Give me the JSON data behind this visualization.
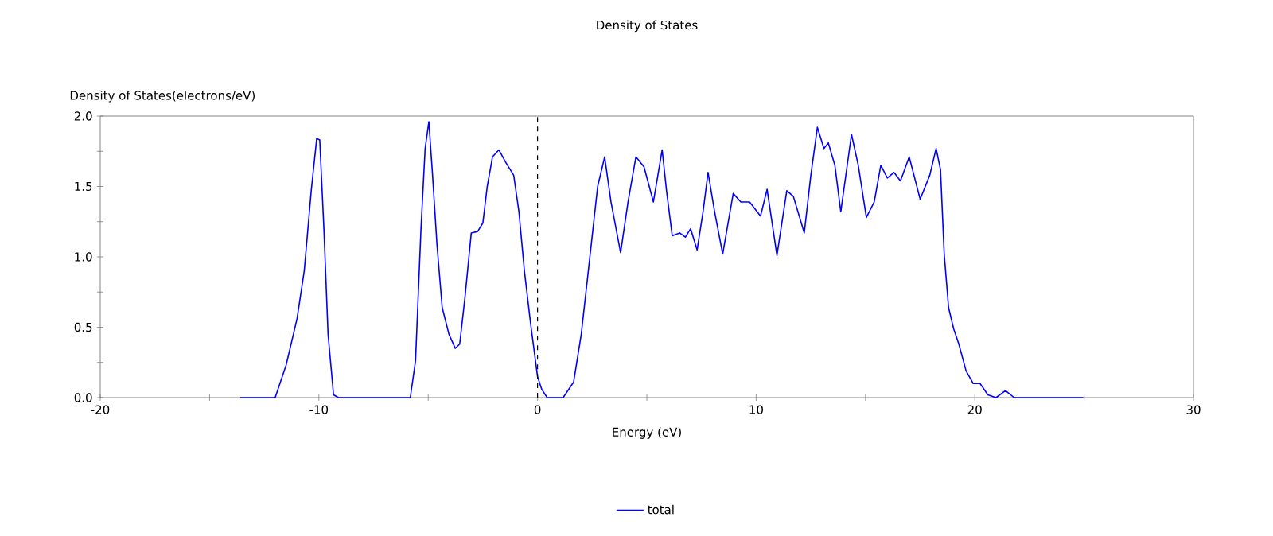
{
  "chart_data": {
    "type": "line",
    "title": "Density of States",
    "xlabel": "Energy (eV)",
    "ylabel": "Density of States(electrons/eV)",
    "xlim": [
      -20,
      30
    ],
    "ylim": [
      0,
      2.0
    ],
    "xticks": [
      -20,
      {
        "value": -15,
        "label": null
      },
      -10,
      {
        "value": -5,
        "label": null
      },
      0,
      {
        "value": 5,
        "label": null
      },
      10,
      {
        "value": 15,
        "label": null
      },
      20,
      {
        "value": 25,
        "label": null
      },
      30
    ],
    "yticks": [
      {
        "value": 0,
        "label": "0.0"
      },
      {
        "value": 0.25,
        "label": null
      },
      {
        "value": 0.5,
        "label": "0.5"
      },
      {
        "value": 0.75,
        "label": null
      },
      {
        "value": 1.0,
        "label": "1.0"
      },
      {
        "value": 1.25,
        "label": null
      },
      {
        "value": 1.5,
        "label": "1.5"
      },
      {
        "value": 1.75,
        "label": null
      },
      {
        "value": 2.0,
        "label": "2.0"
      }
    ],
    "grid": false,
    "legend": "bottom",
    "marker": "none",
    "line_style": "solid",
    "ref_lines": [
      {
        "axis": "x",
        "value": 0,
        "color": "#000000",
        "line_style": "dashed"
      }
    ],
    "series": [
      {
        "name": "total",
        "color": "#0000ff",
        "x": [
          -13.6,
          -12.0,
          -11.5,
          -11.0,
          -10.67,
          -10.35,
          -10.1,
          -9.96,
          -9.77,
          -9.58,
          -9.33,
          -9.1,
          -5.82,
          -5.58,
          -5.33,
          -5.14,
          -4.97,
          -4.8,
          -4.6,
          -4.36,
          -4.05,
          -3.76,
          -3.56,
          -3.32,
          -3.03,
          -2.74,
          -2.5,
          -2.3,
          -2.06,
          -1.77,
          -1.45,
          -1.09,
          -0.85,
          -0.6,
          -0.32,
          0.0,
          0.19,
          0.44,
          1.17,
          1.65,
          2.0,
          2.38,
          2.75,
          3.07,
          3.36,
          3.8,
          4.14,
          4.5,
          4.87,
          5.3,
          5.7,
          5.9,
          6.16,
          6.5,
          6.76,
          7.0,
          7.3,
          7.57,
          7.8,
          8.1,
          8.47,
          8.95,
          9.3,
          9.7,
          10.2,
          10.5,
          10.95,
          11.4,
          11.7,
          12.2,
          12.5,
          12.8,
          13.1,
          13.3,
          13.6,
          13.87,
          14.36,
          14.67,
          15.04,
          15.4,
          15.7,
          16.0,
          16.3,
          16.6,
          17.0,
          17.5,
          17.94,
          18.23,
          18.43,
          18.6,
          18.8,
          19.03,
          19.27,
          19.6,
          19.93,
          20.24,
          20.6,
          20.97,
          21.4,
          21.8,
          24.96
        ],
        "values": [
          0,
          0,
          0.23,
          0.56,
          0.9,
          1.47,
          1.84,
          1.83,
          1.2,
          0.45,
          0.02,
          0,
          0,
          0.26,
          1.2,
          1.77,
          1.96,
          1.58,
          1.09,
          0.64,
          0.45,
          0.35,
          0.38,
          0.71,
          1.17,
          1.18,
          1.24,
          1.5,
          1.71,
          1.76,
          1.67,
          1.58,
          1.32,
          0.9,
          0.53,
          0.15,
          0.06,
          0,
          0,
          0.11,
          0.45,
          0.98,
          1.5,
          1.71,
          1.39,
          1.03,
          1.39,
          1.71,
          1.64,
          1.39,
          1.76,
          1.47,
          1.15,
          1.17,
          1.14,
          1.2,
          1.05,
          1.32,
          1.6,
          1.32,
          1.02,
          1.45,
          1.39,
          1.39,
          1.29,
          1.48,
          1.01,
          1.47,
          1.43,
          1.17,
          1.58,
          1.92,
          1.77,
          1.81,
          1.65,
          1.32,
          1.87,
          1.65,
          1.28,
          1.39,
          1.65,
          1.56,
          1.6,
          1.54,
          1.71,
          1.41,
          1.58,
          1.77,
          1.62,
          1.02,
          0.64,
          0.49,
          0.38,
          0.19,
          0.1,
          0.1,
          0.02,
          0,
          0.05,
          0,
          0
        ]
      }
    ]
  }
}
